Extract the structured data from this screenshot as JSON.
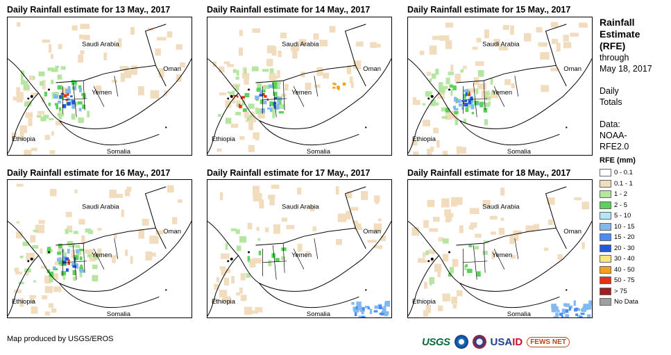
{
  "panels": [
    {
      "title": "Daily Rainfall estimate for 13 May., 2017",
      "rain_intensity": "moderate"
    },
    {
      "title": "Daily Rainfall estimate for 14 May., 2017",
      "rain_intensity": "heavy"
    },
    {
      "title": "Daily Rainfall estimate for 15 May., 2017",
      "rain_intensity": "moderate"
    },
    {
      "title": "Daily Rainfall estimate for 16 May., 2017",
      "rain_intensity": "moderate"
    },
    {
      "title": "Daily Rainfall estimate for 17 May., 2017",
      "rain_intensity": "light"
    },
    {
      "title": "Daily Rainfall estimate for 18 May., 2017",
      "rain_intensity": "light"
    }
  ],
  "place_labels": {
    "saudi_arabia": "Saudi Arabia",
    "oman": "Oman",
    "yemen": "Yemen",
    "ethiopia": "Ethiopia",
    "somalia": "Somalia"
  },
  "legend": {
    "title_line1": "Rainfall",
    "title_line2": "Estimate",
    "title_line3": "(RFE)",
    "through": "through",
    "date": "May 18, 2017",
    "daily": "Daily",
    "totals": "Totals",
    "data_label": "Data:",
    "source1": "NOAA-",
    "source2": "RFE2.0",
    "scale_title": "RFE (mm)",
    "classes": [
      {
        "label": "0 - 0.1",
        "color": "#ffffff"
      },
      {
        "label": "0.1 - 1",
        "color": "#f2dcbe"
      },
      {
        "label": "1 - 2",
        "color": "#b4e6a0"
      },
      {
        "label": "2 - 5",
        "color": "#5ad25a"
      },
      {
        "label": "5 - 10",
        "color": "#b4e6f5"
      },
      {
        "label": "10 - 15",
        "color": "#82b9f0"
      },
      {
        "label": "15 - 20",
        "color": "#4b8cf0"
      },
      {
        "label": "20 - 30",
        "color": "#1e5adc"
      },
      {
        "label": "30 - 40",
        "color": "#fae682"
      },
      {
        "label": "40 - 50",
        "color": "#f5a01e"
      },
      {
        "label": "50 - 75",
        "color": "#e63214"
      },
      {
        "label": "> 75",
        "color": "#a01e1e"
      },
      {
        "label": "No Data",
        "color": "#a0a0a0"
      }
    ]
  },
  "credit": "Map produced by USGS/EROS",
  "logos": {
    "usgs": "USGS",
    "usaid_usa": "USA",
    "usaid_id": "ID",
    "fews": "FEWS NET"
  }
}
